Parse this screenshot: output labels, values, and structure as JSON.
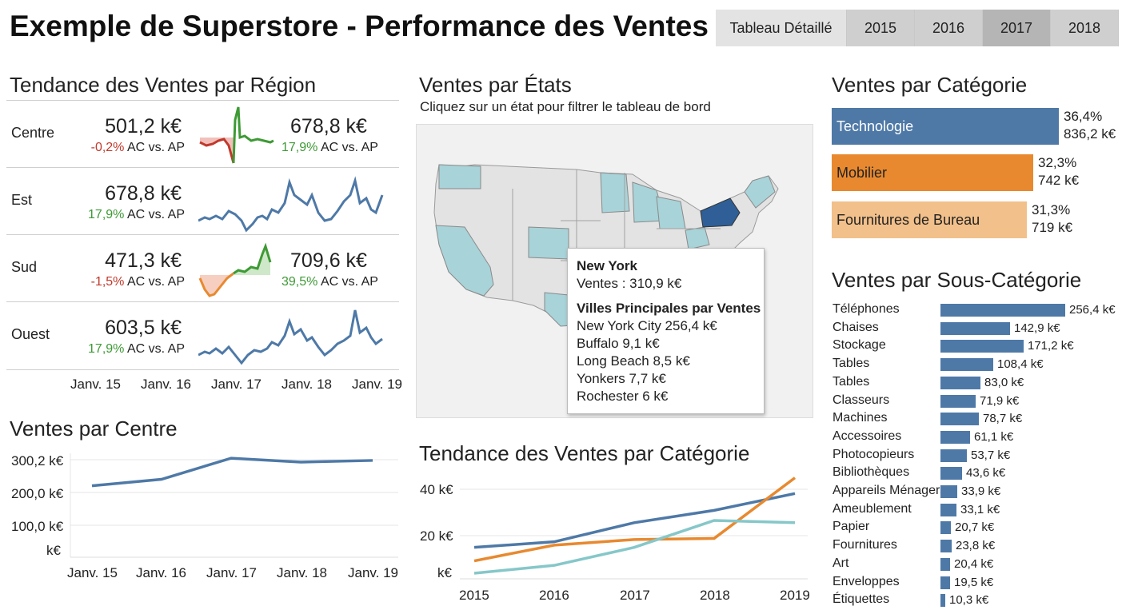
{
  "header": {
    "title": "Exemple de Superstore - Performance des Ventes",
    "tabs": [
      "Tableau Détaillé",
      "2015",
      "2016",
      "2017",
      "2018"
    ],
    "selected_tab": "2017"
  },
  "colors": {
    "blue": "#4e79a7",
    "orange": "#e8892f",
    "light_orange": "#f2c08a",
    "teal": "#86c7c9",
    "green": "#3e9a35",
    "red": "#c0392b",
    "ny_highlight": "#2f5f96",
    "state_light": "#a8d3d8"
  },
  "region_trend": {
    "title": "Tendance des Ventes par Région",
    "rows": [
      {
        "region": "Centre",
        "value1": "501,2 k€",
        "change1": "-0,2%",
        "change1_sign": "neg",
        "value2": "678,8 k€",
        "change2": "17,9%",
        "change2_sign": "pos",
        "suffix": "AC vs. AP"
      },
      {
        "region": "Est",
        "value1": "678,8 k€",
        "change1": "17,9%",
        "change1_sign": "pos",
        "suffix": "AC vs. AP"
      },
      {
        "region": "Sud",
        "value1": "471,3 k€",
        "change1": "-1,5%",
        "change1_sign": "neg",
        "value2": "709,6 k€",
        "change2": "39,5%",
        "change2_sign": "pos",
        "suffix": "AC vs. AP"
      },
      {
        "region": "Ouest",
        "value1": "603,5 k€",
        "change1": "17,9%",
        "change1_sign": "pos",
        "suffix": "AC vs. AP"
      }
    ],
    "x_ticks": [
      "Janv. 15",
      "Janv. 16",
      "Janv. 17",
      "Janv. 18",
      "Janv. 19"
    ]
  },
  "state_sales": {
    "title": "Ventes par États",
    "subtitle": "Cliquez sur un état pour filtrer le tableau de bord",
    "tooltip": {
      "state": "New York",
      "sales": "Ventes : 310,9 k€",
      "cities_title": "Villes Principales par Ventes",
      "cities": [
        "New York City 256,4 k€",
        "Buffalo 9,1 k€",
        "Long Beach 8,5 k€",
        "Yonkers 7,7 k€",
        "Rochester 6 k€"
      ]
    }
  },
  "category_sales": {
    "title": "Ventes par Catégorie",
    "items": [
      {
        "name": "Technologie",
        "pct": "36,4%",
        "value": "836,2 k€",
        "amount": 836.2,
        "color": "#4e79a7"
      },
      {
        "name": "Mobilier",
        "pct": "32,3%",
        "value": "742 k€",
        "amount": 742,
        "color": "#e8892f"
      },
      {
        "name": "Fournitures de Bureau",
        "pct": "31,3%",
        "value": "719 k€",
        "amount": 719,
        "color": "#f2c08a"
      }
    ]
  },
  "subcategory_sales": {
    "title": "Ventes par Sous-Catégorie",
    "items": [
      {
        "name": "Téléphones",
        "value": 256.4,
        "label": "256,4 k€"
      },
      {
        "name": "Chaises",
        "value": 142.9,
        "label": "142,9 k€"
      },
      {
        "name": "Stockage",
        "value": 171.2,
        "label": "171,2 k€"
      },
      {
        "name": "Tables",
        "value": 108.4,
        "label": "108,4 k€"
      },
      {
        "name": "Tables",
        "value": 83.0,
        "label": "83,0 k€"
      },
      {
        "name": "Classeurs",
        "value": 71.9,
        "label": "71,9 k€"
      },
      {
        "name": "Machines",
        "value": 78.7,
        "label": "78,7 k€"
      },
      {
        "name": "Accessoires",
        "value": 61.1,
        "label": "61,1 k€"
      },
      {
        "name": "Photocopieurs",
        "value": 53.7,
        "label": "53,7 k€"
      },
      {
        "name": "Bibliothèques",
        "value": 43.6,
        "label": "43,6 k€"
      },
      {
        "name": "Appareils Ménagers",
        "value": 33.9,
        "label": "33,9 k€"
      },
      {
        "name": "Ameublement",
        "value": 33.1,
        "label": "33,1 k€"
      },
      {
        "name": "Papier",
        "value": 20.7,
        "label": "20,7 k€"
      },
      {
        "name": "Fournitures",
        "value": 23.8,
        "label": "23,8 k€"
      },
      {
        "name": "Art",
        "value": 20.4,
        "label": "20,4 k€"
      },
      {
        "name": "Enveloppes",
        "value": 19.5,
        "label": "19,5 k€"
      },
      {
        "name": "Étiquettes",
        "value": 10.3,
        "label": "10,3 k€"
      }
    ]
  },
  "center_sales": {
    "title": "Ventes par Centre",
    "y_ticks": [
      "300,2 k€",
      "200,0 k€",
      "100,0 k€",
      "k€"
    ],
    "x_ticks": [
      "Janv. 15",
      "Janv. 16",
      "Janv. 17",
      "Janv. 18",
      "Janv. 19"
    ]
  },
  "category_trend": {
    "title": "Tendance des Ventes par Catégorie",
    "y_ticks": [
      "40 k€",
      "20 k€",
      "k€"
    ],
    "x_ticks": [
      "2015",
      "2016",
      "2017",
      "2018",
      "2019"
    ]
  },
  "chart_data": [
    {
      "type": "line",
      "title": "Ventes par Centre",
      "x": [
        "Janv. 15",
        "Janv. 16",
        "Janv. 17",
        "Janv. 18",
        "Janv. 19"
      ],
      "series": [
        {
          "values": [
            220,
            240,
            305,
            293,
            298
          ]
        }
      ],
      "ylim": [
        0,
        320
      ]
    },
    {
      "type": "line",
      "title": "Tendance des Ventes par Catégorie",
      "x": [
        "2015",
        "2016",
        "2017",
        "2018",
        "2019"
      ],
      "series": [
        {
          "color": "#4e79a7",
          "values": [
            12,
            14.5,
            23,
            28.5,
            36
          ]
        },
        {
          "color": "#e8892f",
          "values": [
            6,
            13,
            15.5,
            16,
            43
          ]
        },
        {
          "color": "#86c7c9",
          "values": [
            0.5,
            4,
            12,
            24,
            23
          ]
        }
      ],
      "ylim": [
        -2,
        45
      ]
    },
    {
      "type": "bar",
      "title": "Ventes par Catégorie",
      "categories": [
        "Technologie",
        "Mobilier",
        "Fournitures de Bureau"
      ],
      "values": [
        836.2,
        742,
        719
      ]
    },
    {
      "type": "bar",
      "title": "Ventes par Sous-Catégorie",
      "categories": [
        "Téléphones",
        "Chaises",
        "Stockage",
        "Tables",
        "Tables",
        "Classeurs",
        "Machines",
        "Accessoires",
        "Photocopieurs",
        "Bibliothèques",
        "Appareils Ménagers",
        "Ameublement",
        "Papier",
        "Fournitures",
        "Art",
        "Enveloppes",
        "Étiquettes"
      ],
      "values": [
        256.4,
        142.9,
        171.2,
        108.4,
        83.0,
        71.9,
        78.7,
        61.1,
        53.7,
        43.6,
        33.9,
        33.1,
        20.7,
        23.8,
        20.4,
        19.5,
        10.3
      ]
    }
  ]
}
